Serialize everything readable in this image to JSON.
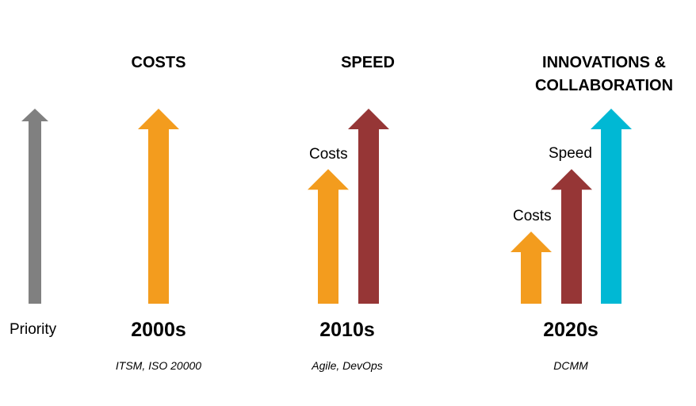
{
  "axis_label": "Priority",
  "colors": {
    "priority": "#808080",
    "costs": "#F39C1E",
    "speed": "#963636",
    "innovation": "#00B8D4"
  },
  "columns": [
    {
      "heading": [
        "COSTS"
      ],
      "era": "2000s",
      "methods": "ITSM, ISO 20000",
      "arrows": [
        {
          "name": "costs",
          "color_key": "costs",
          "level": 1.0,
          "label": ""
        }
      ]
    },
    {
      "heading": [
        "SPEED"
      ],
      "era": "2010s",
      "methods": "Agile, DevOps",
      "arrows": [
        {
          "name": "costs",
          "color_key": "costs",
          "level": 0.69,
          "label": "Costs"
        },
        {
          "name": "speed",
          "color_key": "speed",
          "level": 1.0,
          "label": ""
        }
      ]
    },
    {
      "heading": [
        "INNOVATIONS &",
        "COLLABORATION"
      ],
      "era": "2020s",
      "methods": "DCMM",
      "arrows": [
        {
          "name": "costs",
          "color_key": "costs",
          "level": 0.37,
          "label": "Costs"
        },
        {
          "name": "speed",
          "color_key": "speed",
          "level": 0.69,
          "label": "Speed"
        },
        {
          "name": "innovation",
          "color_key": "innovation",
          "level": 1.0,
          "label": ""
        }
      ]
    }
  ]
}
